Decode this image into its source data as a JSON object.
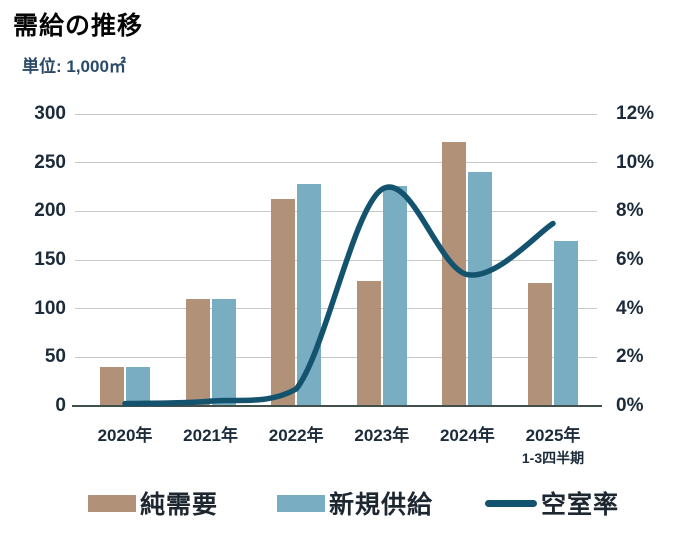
{
  "title": "需給の推移",
  "subtitle": "単位: 1,000㎡",
  "colors": {
    "net_demand": "#b29179",
    "new_supply": "#79aec2",
    "vacancy_line": "#14536e",
    "grid": "#c3cac7",
    "zero_axis": "#41504d",
    "tick_text": "#1c2b3a",
    "title_text": "#050505",
    "subtitle_text": "#2a4a68"
  },
  "chart_data": {
    "type": "bar+line",
    "title": "需給の推移",
    "unit_label": "単位: 1,000㎡",
    "categories": [
      "2020年",
      "2021年",
      "2022年",
      "2023年",
      "2024年",
      "2025年"
    ],
    "category_sublabels": [
      "",
      "",
      "",
      "",
      "",
      "1-3四半期"
    ],
    "series": [
      {
        "name": "純需要",
        "type": "bar",
        "axis": "left",
        "values": [
          40,
          110,
          213,
          128,
          271,
          126
        ]
      },
      {
        "name": "新規供給",
        "type": "bar",
        "axis": "left",
        "values": [
          40,
          110,
          228,
          226,
          240,
          170
        ]
      },
      {
        "name": "空室率",
        "type": "line",
        "axis": "right",
        "values": [
          0.1,
          0.2,
          0.7,
          8.9,
          5.4,
          7.5
        ]
      }
    ],
    "left_axis": {
      "ticks": [
        "0",
        "50",
        "100",
        "150",
        "200",
        "250",
        "300"
      ],
      "min": 0,
      "max": 300
    },
    "right_axis": {
      "ticks": [
        "0%",
        "2%",
        "4%",
        "6%",
        "8%",
        "10%",
        "12%"
      ],
      "min": 0,
      "max": 12
    },
    "legend": [
      "純需要",
      "新規供給",
      "空室率"
    ],
    "grid": true,
    "legend_position": "bottom"
  }
}
